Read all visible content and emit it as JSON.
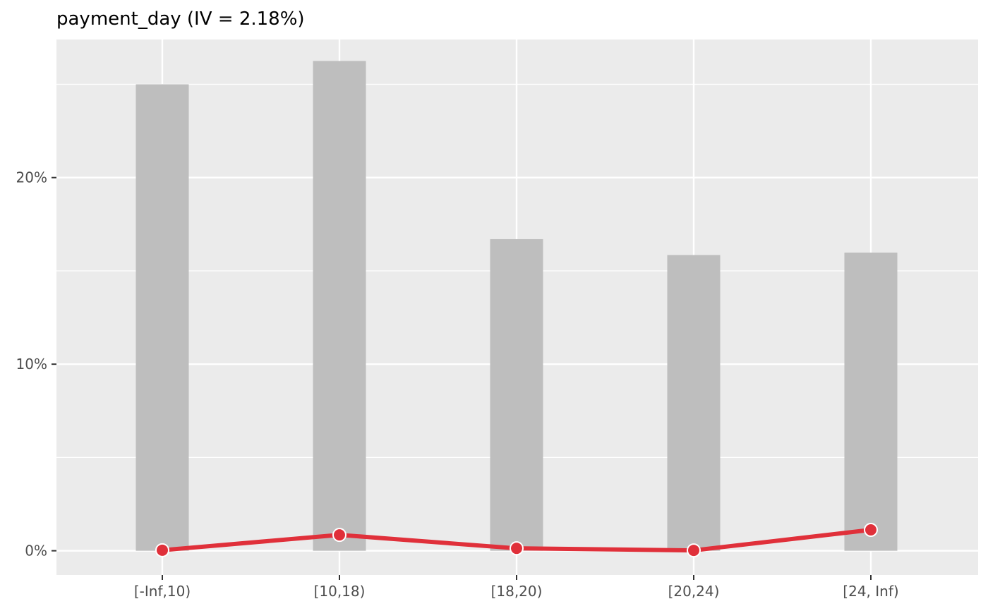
{
  "chart_data": {
    "type": "bar",
    "title": "payment_day (IV = 2.18%)",
    "xlabel": "",
    "ylabel": "",
    "categories": [
      "[-Inf,10)",
      "[10,18)",
      "[18,20)",
      "[20,24)",
      "[24, Inf)"
    ],
    "series": [
      {
        "type": "bar",
        "values": [
          25.0,
          26.25,
          16.7,
          15.85,
          15.98
        ],
        "color": "#bebebe"
      },
      {
        "type": "line",
        "values": [
          0.03,
          0.85,
          0.13,
          0.02,
          1.12
        ],
        "color": "#e0303a"
      }
    ],
    "y_ticks": [
      0,
      10,
      20
    ],
    "y_tick_labels": [
      "0%",
      "10%",
      "20%"
    ],
    "ylim": [
      -1.3,
      27.4
    ],
    "grid": true,
    "panel_background": "#ebebeb",
    "legend": "none"
  }
}
